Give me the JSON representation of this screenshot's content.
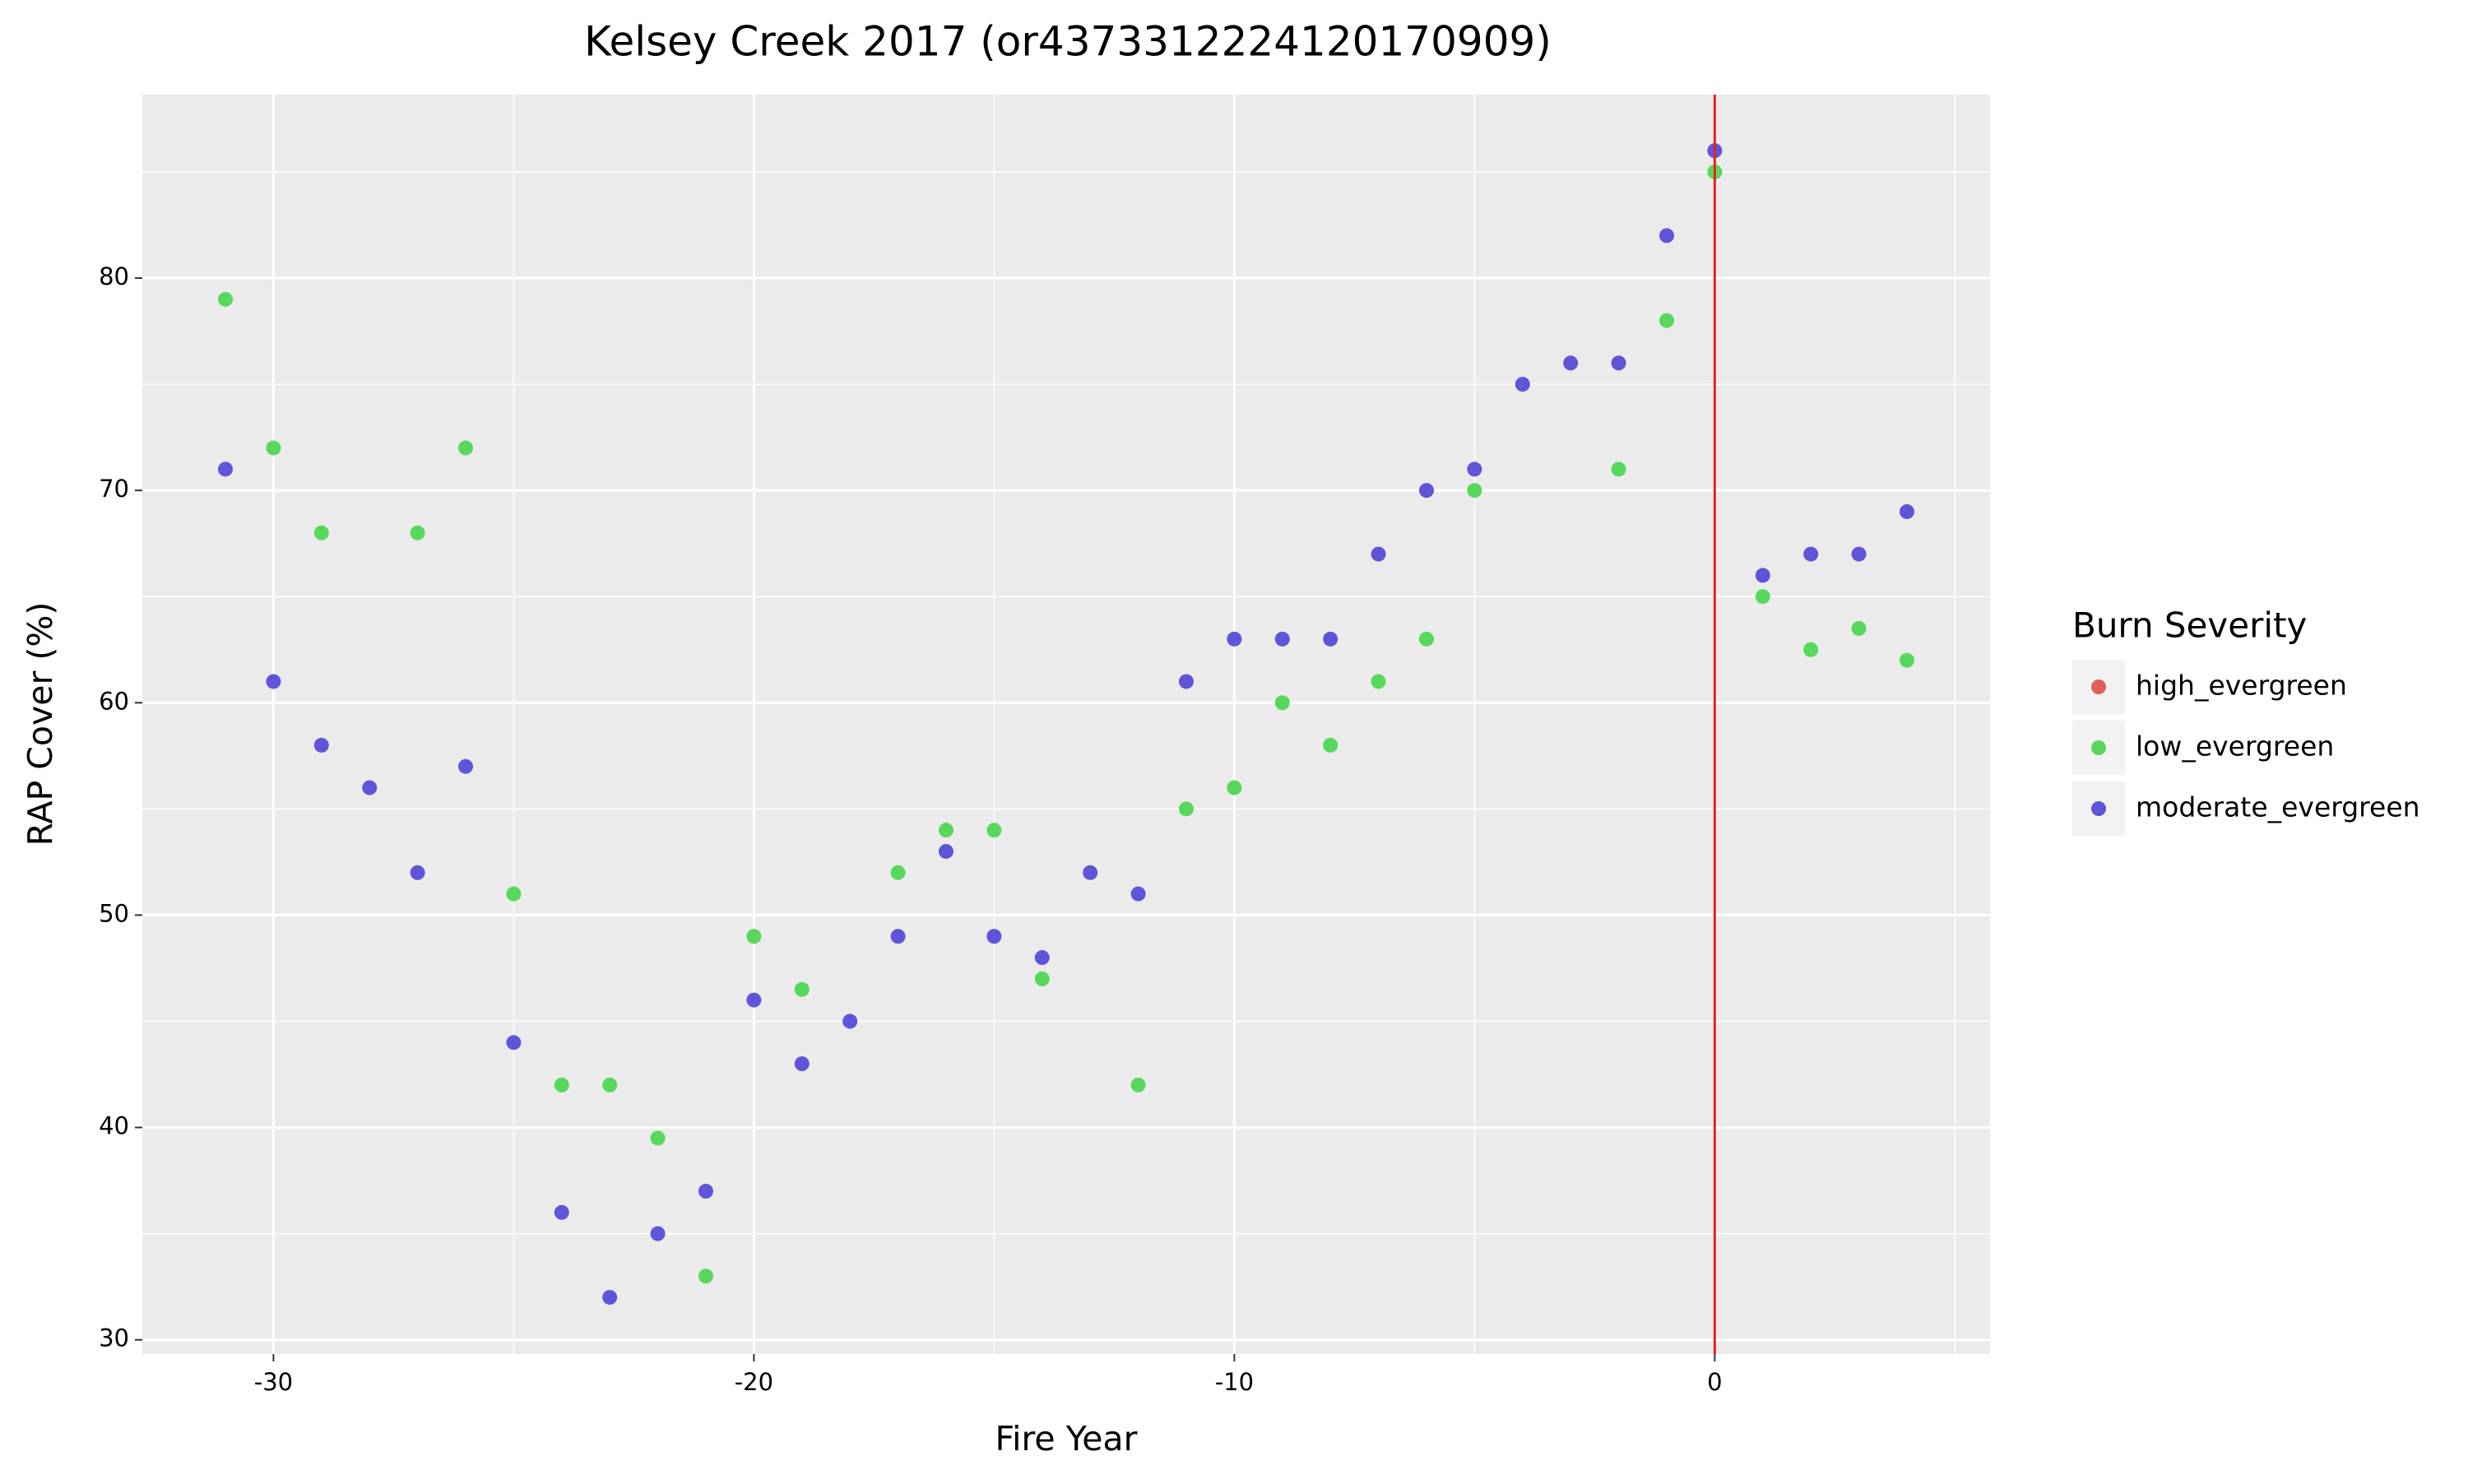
{
  "chart_data": {
    "type": "scatter",
    "title": "Kelsey Creek 2017 (or4373312224120170909)",
    "x_label": "Fire Year",
    "y_label": "RAP Cover (%)",
    "legend_title": "Burn Severity",
    "legend": "right",
    "xlim": [
      -32.73,
      5.73
    ],
    "ylim": [
      29.33,
      88.64
    ],
    "xticks": [
      -30,
      -20,
      -10,
      0
    ],
    "yticks": [
      30,
      40,
      50,
      60,
      70,
      80
    ],
    "grid": true,
    "minor_grid": true,
    "vline": {
      "x": 0,
      "color": "#e8211c"
    },
    "series": [
      {
        "name": "high_evergreen",
        "color": "#e0605a",
        "x": [],
        "values": []
      },
      {
        "name": "low_evergreen",
        "color": "#57d85c",
        "x": [
          -31,
          -30,
          -29,
          -27,
          -26,
          -25,
          -24,
          -23,
          -22,
          -21,
          -20,
          -19,
          -17,
          -16,
          -15,
          -14,
          -12,
          -11,
          -10,
          -9,
          -8,
          -7,
          -6,
          -5,
          -2,
          -1,
          0,
          1,
          2,
          3,
          4
        ],
        "values": [
          79,
          72,
          68,
          68,
          72,
          51,
          42,
          42,
          39.5,
          33,
          49,
          46.5,
          52,
          54,
          54,
          47,
          42,
          55,
          56,
          60,
          58,
          61,
          63,
          70,
          71,
          78,
          85,
          65,
          62.5,
          63.5,
          62
        ]
      },
      {
        "name": "moderate_evergreen",
        "color": "#5f55d9",
        "x": [
          -31,
          -30,
          -29,
          -28,
          -27,
          -26,
          -25,
          -24,
          -23,
          -22,
          -21,
          -20,
          -19,
          -18,
          -17,
          -16,
          -15,
          -14,
          -13,
          -12,
          -11,
          -10,
          -9,
          -8,
          -7,
          -6,
          -5,
          -4,
          -3,
          -2,
          -1,
          0,
          1,
          2,
          3,
          4
        ],
        "values": [
          71,
          61,
          58,
          56,
          52,
          57,
          44,
          36,
          32,
          35,
          37,
          46,
          43,
          45,
          49,
          53,
          49,
          48,
          52,
          51,
          61,
          63,
          63,
          63,
          67,
          70,
          71,
          75,
          76,
          76,
          82,
          86,
          66,
          67,
          67,
          69
        ]
      }
    ]
  }
}
